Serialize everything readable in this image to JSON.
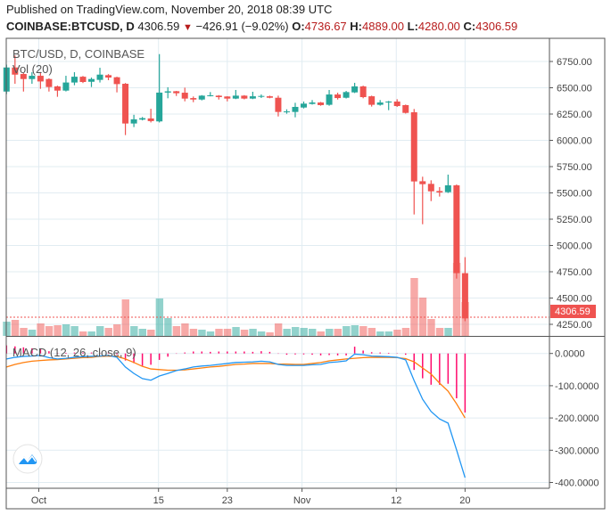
{
  "header": {
    "published": "Published on TradingView.com, November 20, 2018 08:39 UTC",
    "symbol": "COINBASE:BTCUSD, D",
    "last": "4306.59",
    "change": "−426.91 (−9.02%)",
    "o_label": "O:",
    "o": "4736.67",
    "h_label": "H:",
    "h": "4889.00",
    "l_label": "L:",
    "l": "4280.00",
    "c_label": "C:",
    "c": "4306.59"
  },
  "legend": {
    "main": "BTC/USD, D, COINBASE",
    "volume": "Vol (20)",
    "macd": "MACD (12, 26, close, 9)"
  },
  "last_price_label": "4306.59",
  "colors": {
    "up": "#26a69a",
    "down": "#ef5350",
    "macd": "#2196f3",
    "signal": "#ff7f0e",
    "histogram": "#ff0a6c",
    "grid": "#e1ecf2"
  },
  "chart_data": [
    {
      "type": "candlestick",
      "title": "BTC/USD, D, COINBASE",
      "ylim": [
        4200,
        6850
      ],
      "y_ticks": [
        "6750.00",
        "6500.00",
        "6250.00",
        "6000.00",
        "5750.00",
        "5500.00",
        "5250.00",
        "5000.00",
        "4750.00",
        "4500.00",
        "4250.00"
      ],
      "x_ticks": [
        "Oct",
        "15",
        "23",
        "Nov",
        "12",
        "20"
      ],
      "grid": true,
      "ohlc": [
        [
          6464,
          6720,
          6440,
          6693
        ],
        [
          6693,
          6807,
          6538,
          6625
        ],
        [
          6631,
          6640,
          6464,
          6583
        ],
        [
          6583,
          6648,
          6538,
          6614
        ],
        [
          6614,
          6650,
          6490,
          6560
        ],
        [
          6583,
          6590,
          6464,
          6507
        ],
        [
          6513,
          6520,
          6414,
          6473
        ],
        [
          6473,
          6614,
          6465,
          6550
        ],
        [
          6550,
          6648,
          6524,
          6605
        ],
        [
          6605,
          6612,
          6545,
          6555
        ],
        [
          6557,
          6597,
          6507,
          6583
        ],
        [
          6575,
          6690,
          6550,
          6625
        ],
        [
          6620,
          6630,
          6572,
          6597
        ],
        [
          6600,
          6605,
          6456,
          6535
        ],
        [
          6538,
          6545,
          6050,
          6160
        ],
        [
          6160,
          6243,
          6126,
          6200
        ],
        [
          6197,
          6222,
          6190,
          6211
        ],
        [
          6208,
          6300,
          6170,
          6183
        ],
        [
          6180,
          6820,
          6170,
          6454
        ],
        [
          6454,
          6505,
          6400,
          6466
        ],
        [
          6467,
          6470,
          6422,
          6448
        ],
        [
          6453,
          6501,
          6371,
          6397
        ],
        [
          6402,
          6417,
          6363,
          6388
        ],
        [
          6388,
          6430,
          6380,
          6425
        ],
        [
          6422,
          6459,
          6418,
          6428
        ],
        [
          6425,
          6430,
          6388,
          6411
        ],
        [
          6417,
          6420,
          6371,
          6397
        ],
        [
          6397,
          6479,
          6392,
          6425
        ],
        [
          6425,
          6430,
          6390,
          6397
        ],
        [
          6397,
          6462,
          6392,
          6419
        ],
        [
          6417,
          6436,
          6403,
          6422
        ],
        [
          6419,
          6425,
          6400,
          6405
        ],
        [
          6405,
          6425,
          6227,
          6270
        ],
        [
          6270,
          6295,
          6253,
          6275
        ],
        [
          6270,
          6357,
          6219,
          6318
        ],
        [
          6312,
          6369,
          6303,
          6349
        ],
        [
          6346,
          6383,
          6340,
          6360
        ],
        [
          6360,
          6365,
          6329,
          6335
        ],
        [
          6338,
          6479,
          6329,
          6436
        ],
        [
          6436,
          6453,
          6388,
          6402
        ],
        [
          6405,
          6470,
          6398,
          6459
        ],
        [
          6456,
          6547,
          6450,
          6513
        ],
        [
          6513,
          6520,
          6400,
          6411
        ],
        [
          6419,
          6425,
          6321,
          6338
        ],
        [
          6338,
          6383,
          6330,
          6360
        ],
        [
          6360,
          6375,
          6287,
          6369
        ],
        [
          6369,
          6391,
          6318,
          6326
        ],
        [
          6335,
          6340,
          6255,
          6261
        ],
        [
          6267,
          6298,
          5295,
          5609
        ],
        [
          5611,
          5654,
          5202,
          5583
        ],
        [
          5586,
          5620,
          5422,
          5515
        ],
        [
          5518,
          5555,
          5465,
          5504
        ],
        [
          5507,
          5674,
          5500,
          5572
        ],
        [
          5572,
          5580,
          4685,
          4736.67
        ],
        [
          4736.67,
          4889,
          4280,
          4306.59
        ]
      ],
      "volume_relative": [
        48,
        54,
        27,
        21,
        42,
        33,
        36,
        39,
        33,
        15,
        15,
        33,
        27,
        39,
        123,
        33,
        24,
        21,
        126,
        60,
        33,
        42,
        24,
        21,
        15,
        24,
        24,
        30,
        21,
        24,
        15,
        12,
        42,
        24,
        30,
        27,
        24,
        15,
        24,
        24,
        33,
        36,
        33,
        27,
        15,
        15,
        21,
        27,
        195,
        129,
        57,
        27,
        27,
        246,
        114
      ]
    },
    {
      "type": "line",
      "title": "MACD (12, 26, close, 9)",
      "ylim": [
        -410,
        25
      ],
      "y_ticks": [
        "0.0000",
        "-100.0000",
        "-200.0000",
        "-300.0000",
        "-400.0000"
      ],
      "series": [
        {
          "key": "macd",
          "values": [
            -17,
            -12,
            -9,
            -8,
            -6,
            -13,
            -17,
            -15,
            -12,
            -10,
            -9,
            -8,
            -6,
            -12,
            -42,
            -62,
            -78,
            -83,
            -70,
            -62,
            -53,
            -48,
            -42,
            -39,
            -37,
            -34,
            -31,
            -28,
            -27,
            -26,
            -24,
            -26,
            -34,
            -37,
            -37,
            -37,
            -35,
            -34,
            -28,
            -26,
            -23,
            -2,
            -4,
            -8,
            -9,
            -10,
            -12,
            -20,
            -84,
            -142,
            -180,
            -203,
            -216,
            -299,
            -385
          ]
        },
        {
          "key": "signal",
          "values": [
            -42,
            -34,
            -28,
            -24,
            -22,
            -20,
            -19,
            -17,
            -15,
            -13,
            -12,
            -9,
            -8,
            -9,
            -17,
            -28,
            -40,
            -48,
            -50,
            -52,
            -52,
            -51,
            -48,
            -45,
            -42,
            -40,
            -37,
            -34,
            -33,
            -31,
            -31,
            -31,
            -33,
            -33,
            -34,
            -34,
            -31,
            -28,
            -23,
            -20,
            -17,
            -15,
            -13,
            -12,
            -12,
            -12,
            -13,
            -16,
            -26,
            -45,
            -64,
            -92,
            -117,
            -156,
            -200
          ]
        },
        {
          "key": "histogram",
          "values": [
            25,
            22,
            19,
            16,
            16,
            7,
            2,
            2,
            3,
            3,
            3,
            1,
            2,
            -3,
            -22,
            -30,
            -38,
            -35,
            -20,
            -10,
            -1,
            3,
            6,
            6,
            5,
            6,
            6,
            6,
            6,
            5,
            7,
            5,
            -1,
            -4,
            -3,
            -3,
            -4,
            -6,
            -5,
            -6,
            -6,
            21,
            9,
            4,
            3,
            2,
            1,
            -4,
            -51,
            -77,
            -97,
            -97,
            -94,
            -139,
            -183
          ]
        }
      ]
    }
  ]
}
